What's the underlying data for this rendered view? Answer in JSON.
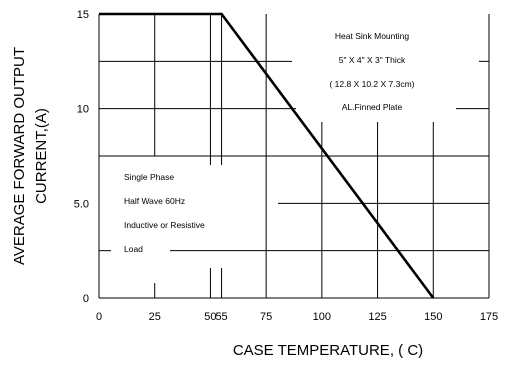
{
  "chart_data": {
    "type": "line",
    "xlabel": "CASE  TEMPERATURE, (     C)",
    "ylabel": [
      "AVERAGE FORWARD OUTPUT",
      "CURRENT,(A)"
    ],
    "xlim": [
      0,
      175
    ],
    "ylim": [
      0,
      15
    ],
    "grid": true,
    "x_ticks": [
      {
        "value": 0,
        "label": "0"
      },
      {
        "value": 25,
        "label": "25"
      },
      {
        "value": 50,
        "label": "50"
      },
      {
        "value": 55,
        "label": "55"
      },
      {
        "value": 75,
        "label": "75"
      },
      {
        "value": 100,
        "label": "100"
      },
      {
        "value": 125,
        "label": "125"
      },
      {
        "value": 150,
        "label": "150"
      },
      {
        "value": 175,
        "label": "175"
      }
    ],
    "y_ticks": [
      {
        "value": 0,
        "label": "0"
      },
      {
        "value": 5,
        "label": "5.0"
      },
      {
        "value": 10,
        "label": "10"
      },
      {
        "value": 15,
        "label": "15"
      }
    ],
    "series": [
      {
        "x": [
          0,
          55,
          150
        ],
        "y": [
          15,
          15,
          0
        ],
        "color": "#000000"
      }
    ],
    "annotations": {
      "upper_right": [
        "Heat Sink Mounting",
        "5\" X 4\" X 3\"  Thick",
        "( 12.8 X 10.2 X 7.3cm)",
        "AL.Finned Plate"
      ],
      "lower_left": [
        "Single Phase",
        "Half Wave 60Hz",
        "Inductive or Resistive",
        "Load"
      ]
    }
  }
}
